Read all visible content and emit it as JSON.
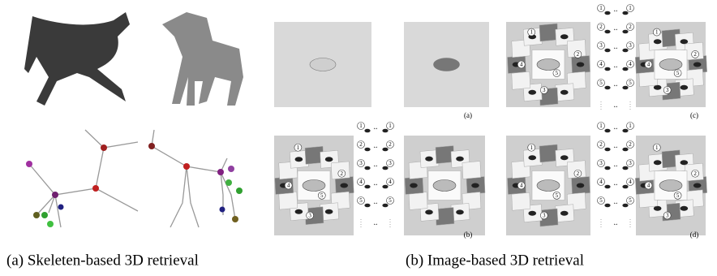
{
  "captions": [
    "(a) Skeleten-based 3D retrieval",
    "(b) Image-based 3D retrieval"
  ],
  "panel_labels": [
    "(a)",
    "(b)",
    "(c)",
    "(d)"
  ],
  "view_numbers": [
    "1",
    "2",
    "3",
    "4",
    "5"
  ],
  "arrow": "↔"
}
